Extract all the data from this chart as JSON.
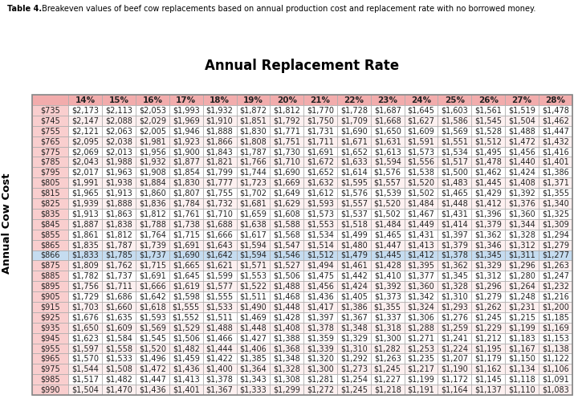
{
  "caption_bold": "Table 4.",
  "caption_rest": " Breakeven values of beef cow replacements based on annual production cost and replacement rate with no borrowed money.",
  "col_header": "Annual Replacement Rate",
  "row_header": "Annual Cow Cost",
  "col_labels": [
    "",
    "14%",
    "15%",
    "16%",
    "17%",
    "18%",
    "19%",
    "20%",
    "21%",
    "22%",
    "23%",
    "24%",
    "25%",
    "26%",
    "27%",
    "28%"
  ],
  "row_labels": [
    "$735",
    "$745",
    "$755",
    "$765",
    "$775",
    "$785",
    "$795",
    "$805",
    "$815",
    "$825",
    "$835",
    "$845",
    "$855",
    "$865",
    "$866",
    "$875",
    "$885",
    "$895",
    "$905",
    "$915",
    "$925",
    "$935",
    "$945",
    "$955",
    "$965",
    "$975",
    "$985",
    "$990"
  ],
  "data": [
    [
      2173,
      2113,
      2053,
      1993,
      1932,
      1872,
      1812,
      1770,
      1728,
      1687,
      1645,
      1603,
      1561,
      1519,
      1478
    ],
    [
      2147,
      2088,
      2029,
      1969,
      1910,
      1851,
      1792,
      1750,
      1709,
      1668,
      1627,
      1586,
      1545,
      1504,
      1462
    ],
    [
      2121,
      2063,
      2005,
      1946,
      1888,
      1830,
      1771,
      1731,
      1690,
      1650,
      1609,
      1569,
      1528,
      1488,
      1447
    ],
    [
      2095,
      2038,
      1981,
      1923,
      1866,
      1808,
      1751,
      1711,
      1671,
      1631,
      1591,
      1551,
      1512,
      1472,
      1432
    ],
    [
      2069,
      2013,
      1956,
      1900,
      1843,
      1787,
      1730,
      1691,
      1652,
      1613,
      1573,
      1534,
      1495,
      1456,
      1416
    ],
    [
      2043,
      1988,
      1932,
      1877,
      1821,
      1766,
      1710,
      1672,
      1633,
      1594,
      1556,
      1517,
      1478,
      1440,
      1401
    ],
    [
      2017,
      1963,
      1908,
      1854,
      1799,
      1744,
      1690,
      1652,
      1614,
      1576,
      1538,
      1500,
      1462,
      1424,
      1386
    ],
    [
      1991,
      1938,
      1884,
      1830,
      1777,
      1723,
      1669,
      1632,
      1595,
      1557,
      1520,
      1483,
      1445,
      1408,
      1371
    ],
    [
      1965,
      1913,
      1860,
      1807,
      1755,
      1702,
      1649,
      1612,
      1576,
      1539,
      1502,
      1465,
      1429,
      1392,
      1355
    ],
    [
      1939,
      1888,
      1836,
      1784,
      1732,
      1681,
      1629,
      1593,
      1557,
      1520,
      1484,
      1448,
      1412,
      1376,
      1340
    ],
    [
      1913,
      1863,
      1812,
      1761,
      1710,
      1659,
      1608,
      1573,
      1537,
      1502,
      1467,
      1431,
      1396,
      1360,
      1325
    ],
    [
      1887,
      1838,
      1788,
      1738,
      1688,
      1638,
      1588,
      1553,
      1518,
      1484,
      1449,
      1414,
      1379,
      1344,
      1309
    ],
    [
      1861,
      1812,
      1764,
      1715,
      1666,
      1617,
      1568,
      1534,
      1499,
      1465,
      1431,
      1397,
      1362,
      1328,
      1294
    ],
    [
      1835,
      1787,
      1739,
      1691,
      1643,
      1594,
      1547,
      1514,
      1480,
      1447,
      1413,
      1379,
      1346,
      1312,
      1279
    ],
    [
      1833,
      1785,
      1737,
      1690,
      1642,
      1594,
      1546,
      1512,
      1479,
      1445,
      1412,
      1378,
      1345,
      1311,
      1277
    ],
    [
      1809,
      1762,
      1715,
      1665,
      1621,
      1571,
      1527,
      1494,
      1461,
      1428,
      1395,
      1362,
      1329,
      1296,
      1263
    ],
    [
      1782,
      1737,
      1691,
      1645,
      1599,
      1553,
      1506,
      1475,
      1442,
      1410,
      1377,
      1345,
      1312,
      1280,
      1247
    ],
    [
      1756,
      1711,
      1666,
      1619,
      1577,
      1522,
      1488,
      1456,
      1424,
      1392,
      1360,
      1328,
      1296,
      1264,
      1232
    ],
    [
      1729,
      1686,
      1642,
      1598,
      1555,
      1511,
      1468,
      1436,
      1405,
      1373,
      1342,
      1310,
      1279,
      1248,
      1216
    ],
    [
      1703,
      1660,
      1618,
      1555,
      1533,
      1490,
      1448,
      1417,
      1386,
      1355,
      1324,
      1293,
      1262,
      1231,
      1200
    ],
    [
      1676,
      1635,
      1593,
      1552,
      1511,
      1469,
      1428,
      1397,
      1367,
      1337,
      1306,
      1276,
      1245,
      1215,
      1185
    ],
    [
      1650,
      1609,
      1569,
      1529,
      1488,
      1448,
      1408,
      1378,
      1348,
      1318,
      1288,
      1259,
      1229,
      1199,
      1169
    ],
    [
      1623,
      1584,
      1545,
      1506,
      1466,
      1427,
      1388,
      1359,
      1329,
      1300,
      1271,
      1241,
      1212,
      1183,
      1153
    ],
    [
      1597,
      1558,
      1520,
      1482,
      1444,
      1406,
      1368,
      1339,
      1310,
      1282,
      1253,
      1224,
      1195,
      1167,
      1138
    ],
    [
      1570,
      1533,
      1496,
      1459,
      1422,
      1385,
      1348,
      1320,
      1292,
      1263,
      1235,
      1207,
      1179,
      1150,
      1122
    ],
    [
      1544,
      1508,
      1472,
      1436,
      1400,
      1364,
      1328,
      1300,
      1273,
      1245,
      1217,
      1190,
      1162,
      1134,
      1106
    ],
    [
      1517,
      1482,
      1447,
      1413,
      1378,
      1343,
      1308,
      1281,
      1254,
      1227,
      1199,
      1172,
      1145,
      1118,
      1091
    ],
    [
      1504,
      1470,
      1436,
      1401,
      1367,
      1333,
      1299,
      1272,
      1245,
      1218,
      1191,
      1164,
      1137,
      1110,
      1083
    ]
  ],
  "highlight_row": 14,
  "header_bg": "#F2ACAC",
  "row_label_bg": "#F9CECE",
  "data_bg_even": "#FFFFFF",
  "data_bg_odd": "#FDF0F0",
  "highlight_bg": "#C5DCF0",
  "border_color": "#AAAAAA",
  "header_font_size": 7.5,
  "data_font_size": 7.0,
  "col_header_fontsize": 12,
  "caption_fontsize": 7.0,
  "row_header_fontsize": 9.5
}
